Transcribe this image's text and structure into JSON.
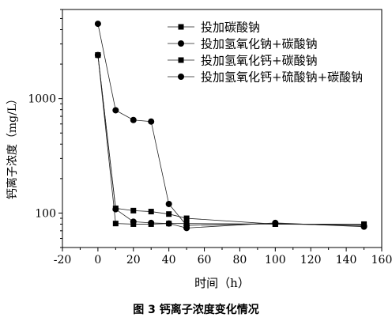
{
  "chart_data": {
    "type": "line",
    "xlabel": "时间（h）",
    "ylabel": "钙离子浓度（mg/L）",
    "xlim": [
      -20,
      160
    ],
    "ylim": [
      50,
      6000
    ],
    "yscale": "log",
    "x_ticks": [
      -20,
      0,
      20,
      40,
      60,
      80,
      100,
      120,
      140,
      160
    ],
    "y_ticks": [
      100,
      1000
    ],
    "legend_position": "top-right",
    "grid": false,
    "series": [
      {
        "name": "投加碳酸钠",
        "marker": "square",
        "x": [
          0,
          10,
          20,
          30,
          40,
          50,
          100,
          150
        ],
        "y": [
          2400,
          110,
          105,
          103,
          98,
          90,
          80,
          80
        ]
      },
      {
        "name": "投加氢氧化钠+碳酸钠",
        "marker": "circle",
        "x": [
          0,
          10,
          20,
          30,
          40,
          50,
          100,
          150
        ],
        "y": [
          4500,
          790,
          650,
          630,
          120,
          78,
          81,
          77
        ]
      },
      {
        "name": "投加氢氧化钙+碳酸钠",
        "marker": "square",
        "x": [
          0,
          10,
          20,
          30,
          40,
          50,
          100,
          150
        ],
        "y": [
          2400,
          81,
          80,
          80,
          81,
          81,
          80,
          79
        ]
      },
      {
        "name": "投加氢氧化钙+硫酸钠+碳酸钠",
        "marker": "circle",
        "x": [
          0,
          10,
          20,
          30,
          40,
          50,
          100,
          150
        ],
        "y": [
          2400,
          108,
          84,
          82,
          81,
          74,
          82,
          76
        ]
      }
    ]
  },
  "caption": "图 3  钙离子浓度变化情况"
}
